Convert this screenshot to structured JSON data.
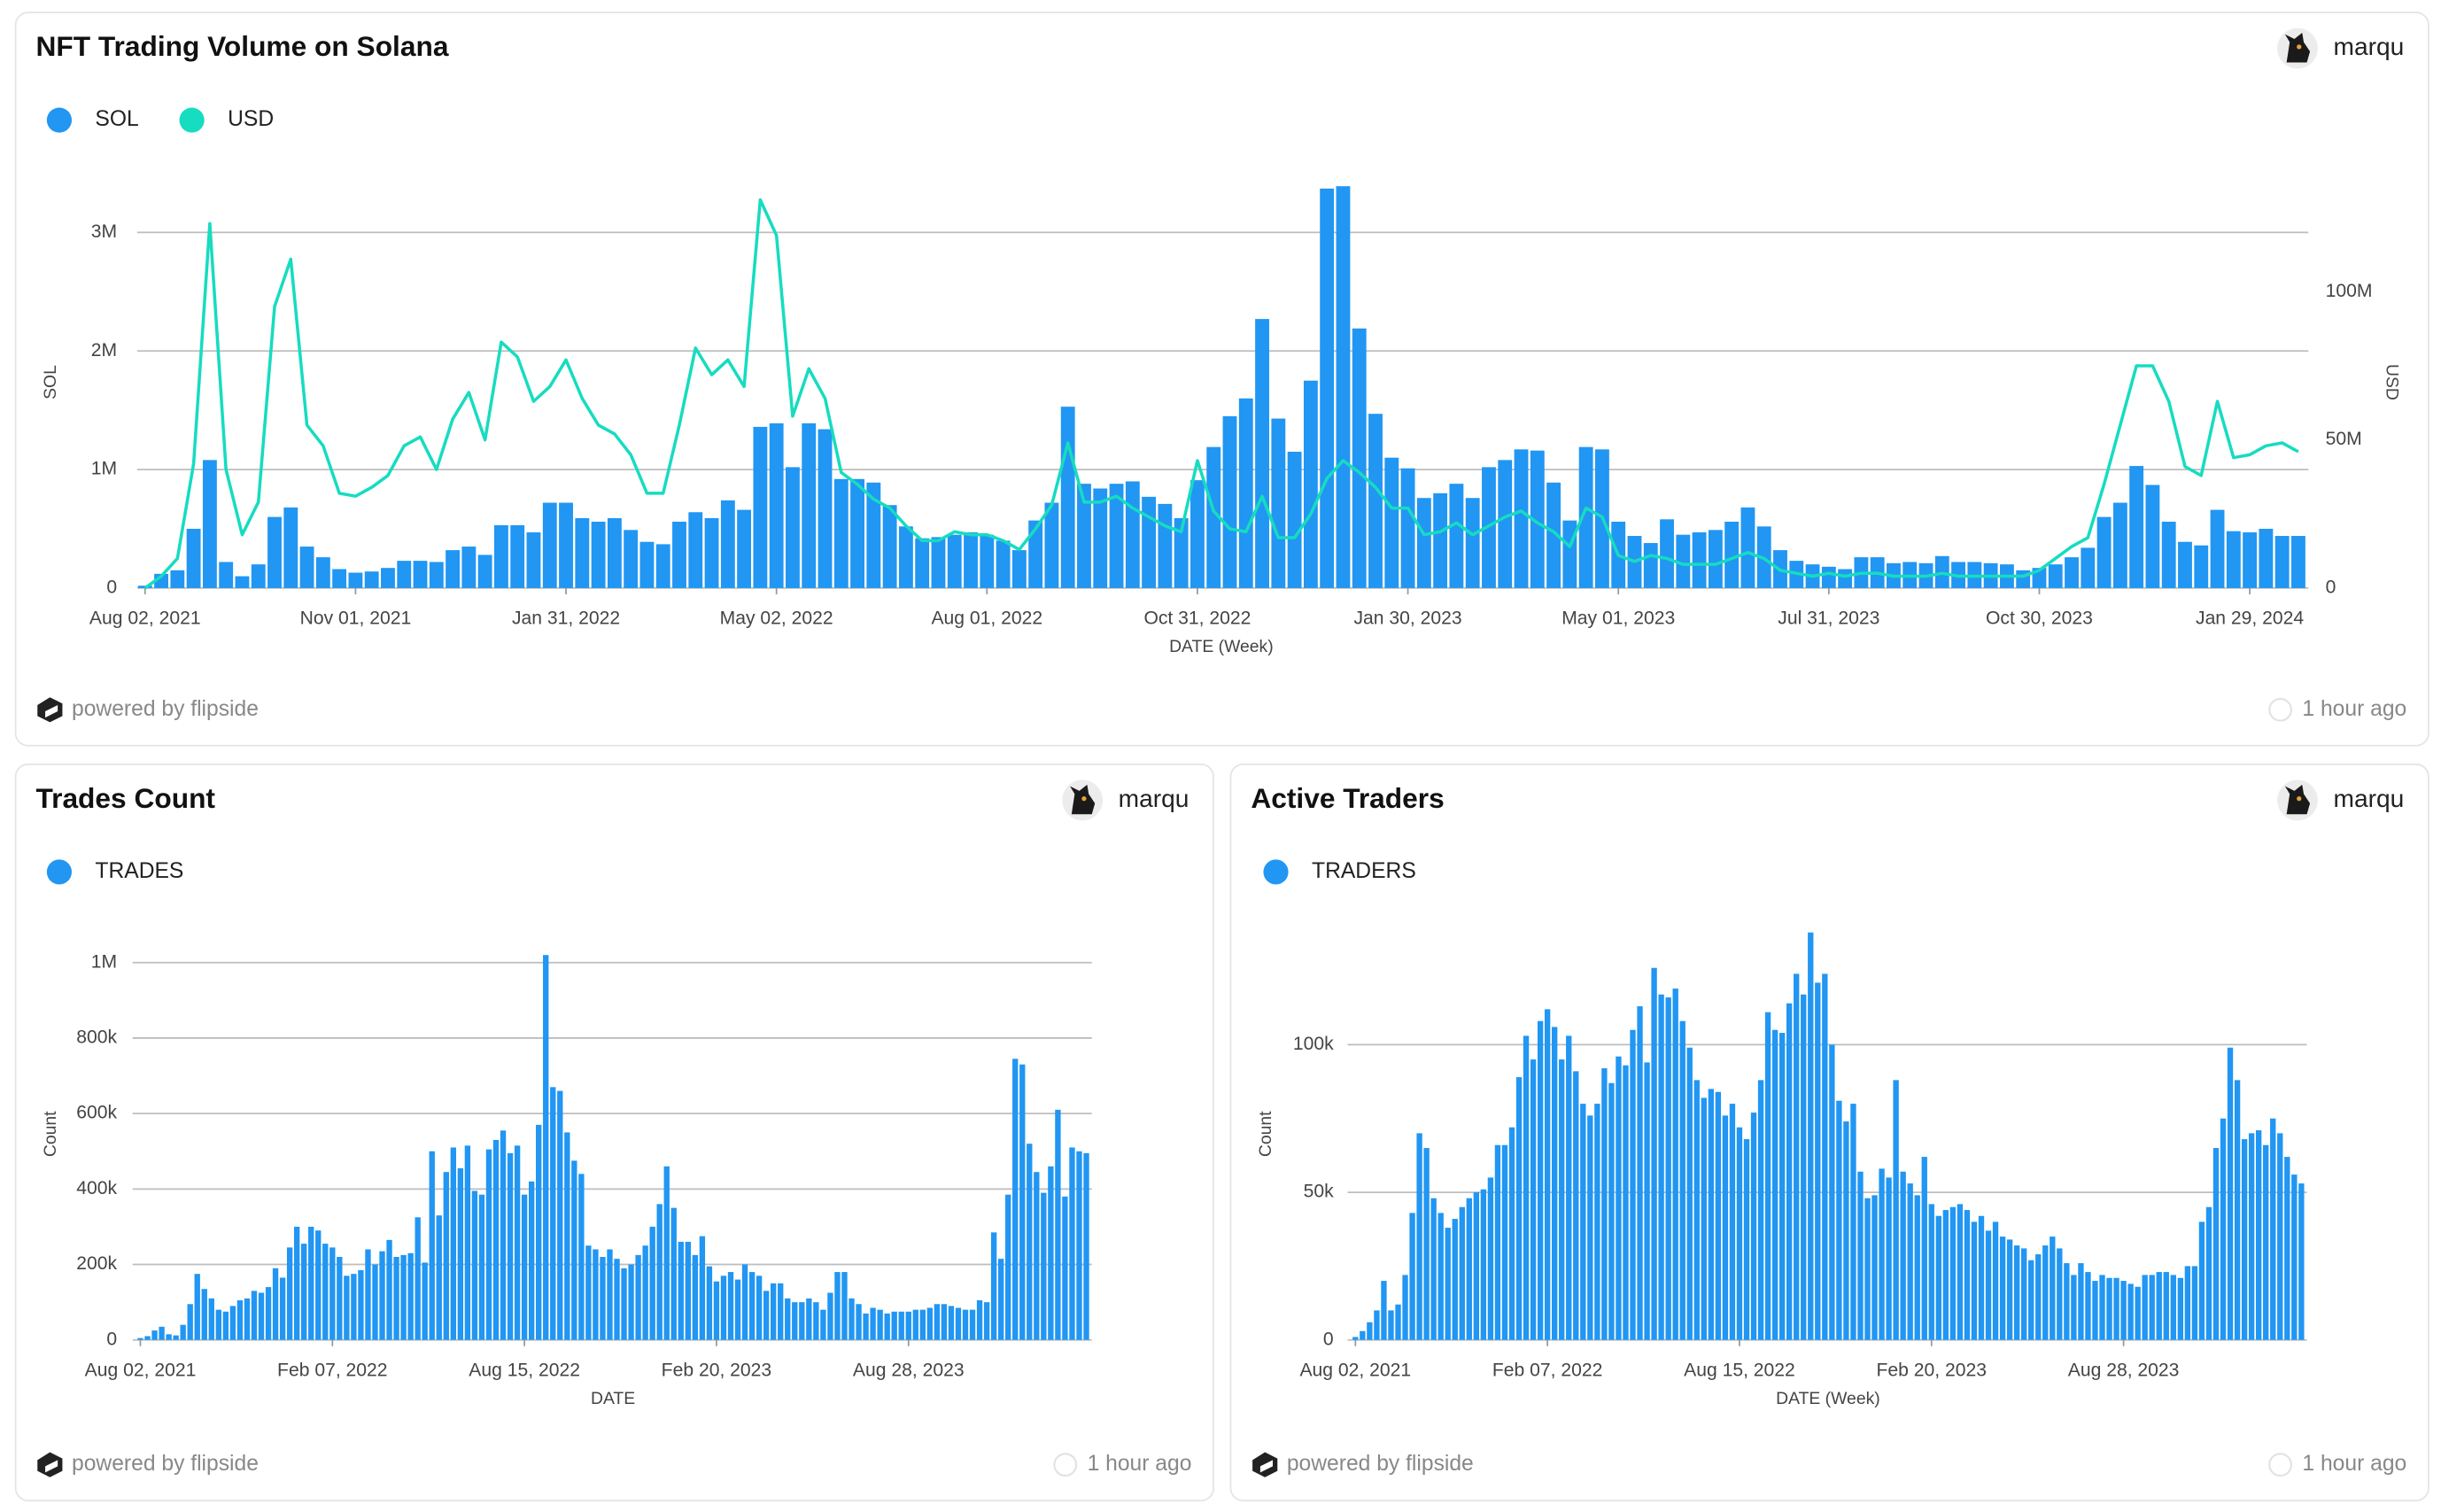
{
  "cards": [
    {
      "author": "marqu",
      "footer": "powered by flipside",
      "updated": "1 hour ago"
    },
    {
      "author": "marqu",
      "footer": "powered by flipside",
      "updated": "1 hour ago"
    },
    {
      "author": "marqu",
      "footer": "powered by flipside",
      "updated": "1 hour ago"
    }
  ],
  "chart_data": [
    {
      "type": "combo",
      "title": "NFT Trading Volume on Solana",
      "xlabel": "DATE (Week)",
      "ylabel": "SOL",
      "y2label": "USD",
      "grid": true,
      "legend": "top-left",
      "categories": [
        "Aug 02, 2021",
        null,
        null,
        null,
        null,
        null,
        null,
        null,
        null,
        null,
        null,
        null,
        null,
        "Nov 01, 2021",
        null,
        null,
        null,
        null,
        null,
        null,
        null,
        null,
        null,
        null,
        null,
        null,
        "Jan 31, 2022",
        null,
        null,
        null,
        null,
        null,
        null,
        null,
        null,
        null,
        null,
        null,
        null,
        "May 02, 2022",
        null,
        null,
        null,
        null,
        null,
        null,
        null,
        null,
        null,
        null,
        null,
        null,
        "Aug 01, 2022",
        null,
        null,
        null,
        null,
        null,
        null,
        null,
        null,
        null,
        null,
        null,
        null,
        "Oct 31, 2022",
        null,
        null,
        null,
        null,
        null,
        null,
        null,
        null,
        null,
        null,
        null,
        null,
        "Jan 30, 2023",
        null,
        null,
        null,
        null,
        null,
        null,
        null,
        null,
        null,
        null,
        null,
        null,
        "May 01, 2023",
        null,
        null,
        null,
        null,
        null,
        null,
        null,
        null,
        null,
        null,
        null,
        null,
        "Jul 31, 2023",
        null,
        null,
        null,
        null,
        null,
        null,
        null,
        null,
        null,
        null,
        null,
        null,
        "Oct 30, 2023",
        null,
        null,
        null,
        null,
        null,
        null,
        null,
        null,
        null,
        null,
        null,
        null,
        "Jan 29, 2024",
        null,
        null,
        null
      ],
      "ylim": [
        0,
        3500000
      ],
      "yticks": [
        0,
        {
          "value": 1000000,
          "label": "1M"
        },
        {
          "value": 2000000,
          "label": "2M"
        },
        {
          "value": 3000000,
          "label": "3M"
        }
      ],
      "y2lim": [
        0,
        140000000
      ],
      "y2ticks": [
        0,
        {
          "value": 50000000,
          "label": "50M"
        },
        {
          "value": 100000000,
          "label": "100M"
        }
      ],
      "series": [
        {
          "name": "SOL",
          "color": "#2196f3",
          "type": "bar",
          "values": [
            20000,
            120000,
            150000,
            500000,
            1080000,
            220000,
            100000,
            200000,
            600000,
            680000,
            350000,
            260000,
            160000,
            130000,
            140000,
            170000,
            230000,
            230000,
            220000,
            320000,
            350000,
            280000,
            530000,
            530000,
            470000,
            720000,
            720000,
            590000,
            560000,
            590000,
            490000,
            390000,
            370000,
            560000,
            640000,
            590000,
            740000,
            660000,
            1360000,
            1390000,
            1020000,
            1390000,
            1340000,
            920000,
            920000,
            890000,
            700000,
            520000,
            420000,
            430000,
            450000,
            470000,
            450000,
            400000,
            320000,
            570000,
            720000,
            1530000,
            880000,
            840000,
            880000,
            900000,
            770000,
            710000,
            590000,
            910000,
            1190000,
            1450000,
            1600000,
            2270000,
            1430000,
            1150000,
            1750000,
            3370000,
            3390000,
            2190000,
            1470000,
            1100000,
            1010000,
            760000,
            800000,
            880000,
            760000,
            1020000,
            1080000,
            1170000,
            1160000,
            890000,
            570000,
            1190000,
            1170000,
            560000,
            440000,
            380000,
            580000,
            450000,
            470000,
            490000,
            560000,
            680000,
            520000,
            320000,
            230000,
            200000,
            180000,
            160000,
            260000,
            260000,
            210000,
            220000,
            210000,
            270000,
            220000,
            220000,
            210000,
            200000,
            150000,
            170000,
            200000,
            260000,
            340000,
            600000,
            720000,
            1030000,
            870000,
            560000,
            390000,
            360000,
            660000,
            480000,
            470000,
            500000,
            440000,
            440000
          ]
        },
        {
          "name": "USD",
          "color": "#16dcc0",
          "type": "line",
          "axis": "y2",
          "values": [
            0,
            4000000,
            10000000,
            42000000,
            123000000,
            40000000,
            18000000,
            29000000,
            95000000,
            111000000,
            55000000,
            48000000,
            32000000,
            31000000,
            34000000,
            38000000,
            48000000,
            51000000,
            40000000,
            57000000,
            66000000,
            50000000,
            83000000,
            78000000,
            63000000,
            68000000,
            77000000,
            64000000,
            55000000,
            52000000,
            45000000,
            32000000,
            32000000,
            55000000,
            81000000,
            72000000,
            77000000,
            68000000,
            131000000,
            119000000,
            58000000,
            74000000,
            64000000,
            39000000,
            35000000,
            30000000,
            27000000,
            21000000,
            16000000,
            16000000,
            19000000,
            18000000,
            18000000,
            16000000,
            13000000,
            20000000,
            28000000,
            49000000,
            29000000,
            29000000,
            31000000,
            27000000,
            24000000,
            21000000,
            19000000,
            43000000,
            26000000,
            20000000,
            19000000,
            31000000,
            17000000,
            17000000,
            25000000,
            37000000,
            43000000,
            39000000,
            34000000,
            27000000,
            27000000,
            18000000,
            19000000,
            22000000,
            18000000,
            21000000,
            24000000,
            26000000,
            22000000,
            19000000,
            14000000,
            27000000,
            24000000,
            11000000,
            9000000,
            11000000,
            10000000,
            8000000,
            8000000,
            8000000,
            10000000,
            12000000,
            10000000,
            6000000,
            5000000,
            4000000,
            5000000,
            4000000,
            5000000,
            5000000,
            4000000,
            4000000,
            4000000,
            5000000,
            4000000,
            4000000,
            4000000,
            4000000,
            4000000,
            6000000,
            10000000,
            14000000,
            17000000,
            35000000,
            55000000,
            75000000,
            75000000,
            63000000,
            41000000,
            38000000,
            63000000,
            44000000,
            45000000,
            48000000,
            49000000,
            46000000
          ]
        }
      ]
    },
    {
      "type": "bar",
      "title": "Trades Count",
      "xlabel": "DATE",
      "ylabel": "Count",
      "grid": true,
      "legend": "top-left",
      "categories": [
        "Aug 02, 2021",
        null,
        null,
        null,
        null,
        null,
        null,
        null,
        null,
        null,
        null,
        null,
        null,
        null,
        null,
        null,
        null,
        null,
        null,
        null,
        null,
        null,
        null,
        null,
        null,
        null,
        null,
        "Feb 07, 2022",
        null,
        null,
        null,
        null,
        null,
        null,
        null,
        null,
        null,
        null,
        null,
        null,
        null,
        null,
        null,
        null,
        null,
        null,
        null,
        null,
        null,
        null,
        null,
        null,
        null,
        null,
        "Aug 15, 2022",
        null,
        null,
        null,
        null,
        null,
        null,
        null,
        null,
        null,
        null,
        null,
        null,
        null,
        null,
        null,
        null,
        null,
        null,
        null,
        null,
        null,
        null,
        null,
        null,
        null,
        null,
        "Feb 20, 2023",
        null,
        null,
        null,
        null,
        null,
        null,
        null,
        null,
        null,
        null,
        null,
        null,
        null,
        null,
        null,
        null,
        null,
        null,
        null,
        null,
        null,
        null,
        null,
        null,
        null,
        null,
        "Aug 28, 2023",
        null,
        null,
        null,
        null,
        null,
        null,
        null,
        null,
        null,
        null,
        null,
        null,
        null,
        null,
        null,
        null,
        null,
        null,
        null,
        null,
        null,
        null,
        null,
        null,
        null
      ],
      "ylim": [
        0,
        1050000
      ],
      "yticks": [
        0,
        {
          "value": 200000,
          "label": "200k"
        },
        {
          "value": 400000,
          "label": "400k"
        },
        {
          "value": 600000,
          "label": "600k"
        },
        {
          "value": 800000,
          "label": "800k"
        },
        {
          "value": 1000000,
          "label": "1M"
        }
      ],
      "series": [
        {
          "name": "TRADES",
          "color": "#2196f3",
          "type": "bar",
          "values": [
            5000,
            10000,
            25000,
            35000,
            15000,
            12000,
            40000,
            95000,
            175000,
            135000,
            110000,
            80000,
            75000,
            90000,
            105000,
            110000,
            130000,
            125000,
            140000,
            190000,
            165000,
            245000,
            300000,
            255000,
            300000,
            290000,
            255000,
            245000,
            220000,
            170000,
            175000,
            185000,
            240000,
            200000,
            235000,
            265000,
            220000,
            225000,
            230000,
            325000,
            205000,
            500000,
            330000,
            445000,
            510000,
            455000,
            515000,
            395000,
            385000,
            505000,
            530000,
            555000,
            495000,
            515000,
            385000,
            420000,
            570000,
            1020000,
            670000,
            660000,
            550000,
            475000,
            440000,
            250000,
            240000,
            220000,
            240000,
            215000,
            190000,
            200000,
            225000,
            250000,
            300000,
            360000,
            460000,
            350000,
            260000,
            260000,
            225000,
            275000,
            195000,
            155000,
            170000,
            180000,
            160000,
            200000,
            180000,
            170000,
            130000,
            150000,
            150000,
            110000,
            100000,
            100000,
            110000,
            100000,
            80000,
            125000,
            180000,
            180000,
            110000,
            95000,
            70000,
            85000,
            80000,
            70000,
            75000,
            75000,
            75000,
            80000,
            80000,
            85000,
            95000,
            95000,
            90000,
            85000,
            80000,
            80000,
            105000,
            100000,
            285000,
            215000,
            385000,
            745000,
            730000,
            520000,
            445000,
            390000,
            460000,
            610000,
            380000,
            510000,
            500000,
            495000
          ]
        }
      ]
    },
    {
      "type": "bar",
      "title": "Active Traders",
      "xlabel": "DATE (Week)",
      "ylabel": "Count",
      "grid": true,
      "legend": "top-left",
      "categories": [
        "Aug 02, 2021",
        null,
        null,
        null,
        null,
        null,
        null,
        null,
        null,
        null,
        null,
        null,
        null,
        null,
        null,
        null,
        null,
        null,
        null,
        null,
        null,
        null,
        null,
        null,
        null,
        null,
        null,
        "Feb 07, 2022",
        null,
        null,
        null,
        null,
        null,
        null,
        null,
        null,
        null,
        null,
        null,
        null,
        null,
        null,
        null,
        null,
        null,
        null,
        null,
        null,
        null,
        null,
        null,
        null,
        null,
        null,
        "Aug 15, 2022",
        null,
        null,
        null,
        null,
        null,
        null,
        null,
        null,
        null,
        null,
        null,
        null,
        null,
        null,
        null,
        null,
        null,
        null,
        null,
        null,
        null,
        null,
        null,
        null,
        null,
        null,
        "Feb 20, 2023",
        null,
        null,
        null,
        null,
        null,
        null,
        null,
        null,
        null,
        null,
        null,
        null,
        null,
        null,
        null,
        null,
        null,
        null,
        null,
        null,
        null,
        null,
        null,
        null,
        null,
        null,
        "Aug 28, 2023",
        null,
        null,
        null,
        null,
        null,
        null,
        null,
        null,
        null,
        null,
        null,
        null,
        null,
        null,
        null,
        null,
        null,
        null,
        null,
        null,
        null,
        null,
        null,
        null,
        null
      ],
      "ylim": [
        0,
        140000
      ],
      "yticks": [
        0,
        {
          "value": 50000,
          "label": "50k"
        },
        {
          "value": 100000,
          "label": "100k"
        }
      ],
      "series": [
        {
          "name": "TRADERS",
          "color": "#2196f3",
          "type": "bar",
          "values": [
            1000,
            3000,
            6000,
            10000,
            20000,
            10000,
            12000,
            22000,
            43000,
            70000,
            65000,
            48000,
            43000,
            38000,
            41000,
            45000,
            48000,
            50000,
            51000,
            55000,
            66000,
            66000,
            72000,
            89000,
            103000,
            95000,
            108000,
            112000,
            106000,
            95000,
            103000,
            91000,
            80000,
            76000,
            80000,
            92000,
            87000,
            96000,
            93000,
            105000,
            113000,
            94000,
            126000,
            117000,
            116000,
            119000,
            108000,
            99000,
            88000,
            82000,
            85000,
            84000,
            76000,
            80000,
            72000,
            68000,
            77000,
            88000,
            111000,
            105000,
            104000,
            114000,
            124000,
            117000,
            138000,
            121000,
            124000,
            100000,
            81000,
            74000,
            80000,
            57000,
            48000,
            49000,
            58000,
            55000,
            88000,
            57000,
            53000,
            49000,
            62000,
            46000,
            42000,
            44000,
            45000,
            46000,
            44000,
            40000,
            42000,
            37000,
            40000,
            35000,
            34000,
            32000,
            31000,
            27000,
            29000,
            32000,
            35000,
            31000,
            26000,
            22000,
            26000,
            23000,
            20000,
            22000,
            21000,
            21000,
            20000,
            19000,
            18000,
            22000,
            22000,
            23000,
            23000,
            22000,
            21000,
            25000,
            25000,
            40000,
            45000,
            65000,
            75000,
            99000,
            88000,
            68000,
            70000,
            71000,
            66000,
            75000,
            70000,
            62000,
            56000,
            53000
          ]
        }
      ]
    }
  ]
}
